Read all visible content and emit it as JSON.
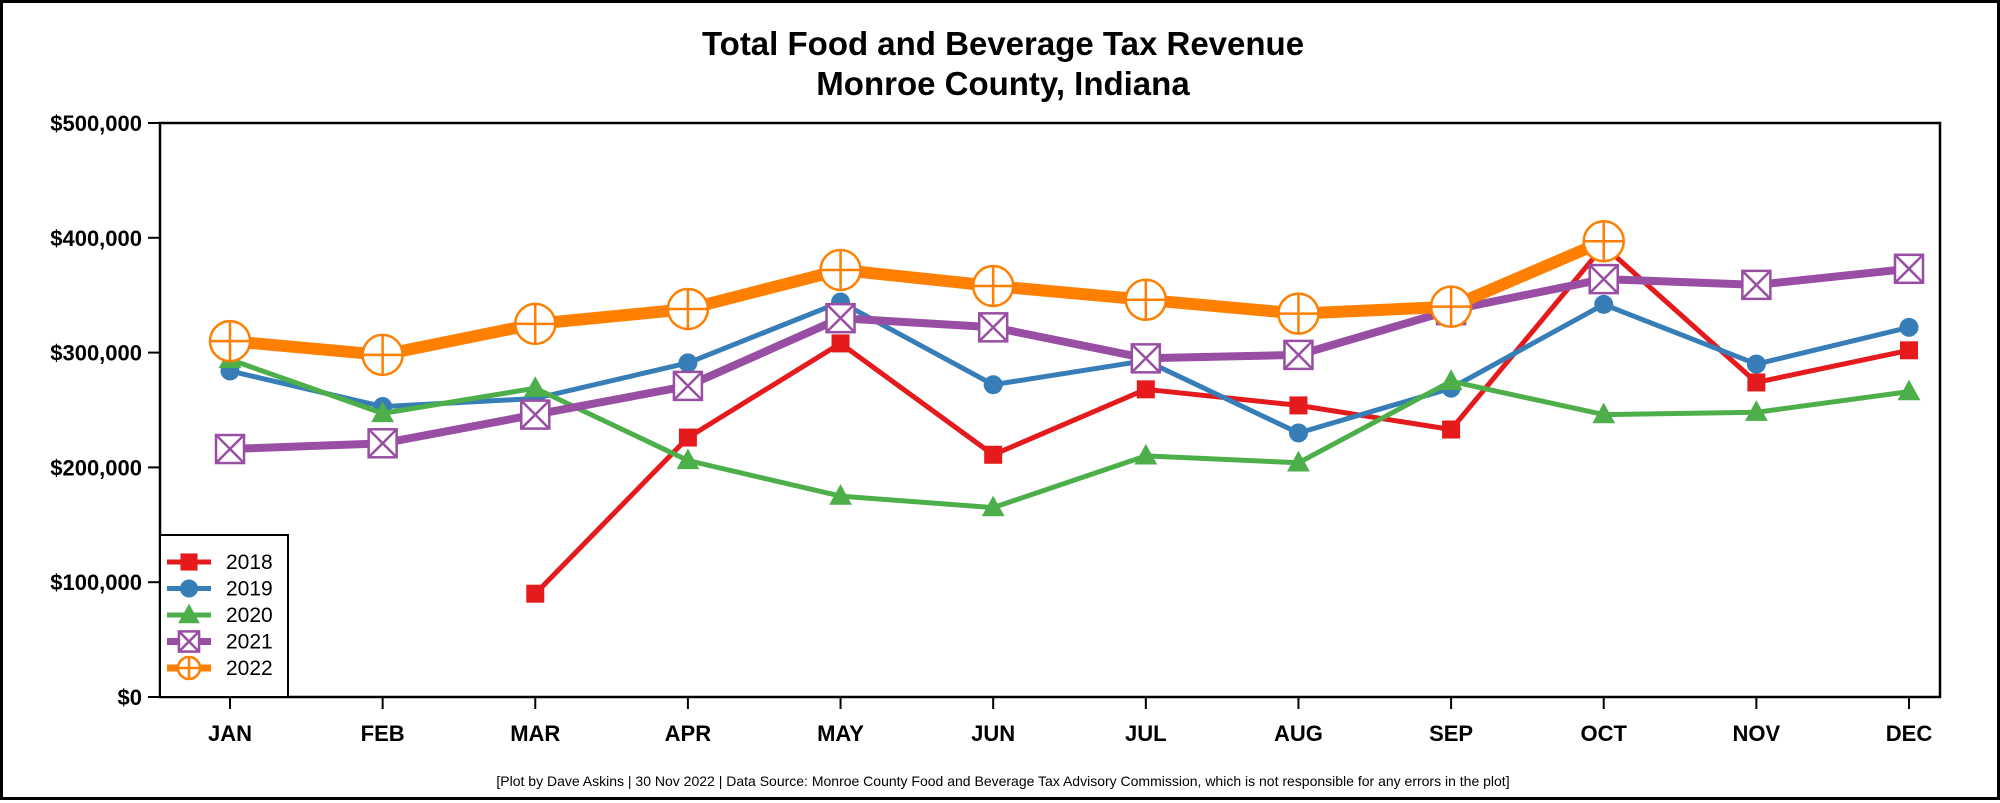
{
  "chart_data": {
    "type": "line",
    "title": "Total Food and Beverage Tax Revenue",
    "subtitle": "Monroe County, Indiana",
    "xlabel": "",
    "ylabel": "",
    "categories": [
      "JAN",
      "FEB",
      "MAR",
      "APR",
      "MAY",
      "JUN",
      "JUL",
      "AUG",
      "SEP",
      "OCT",
      "NOV",
      "DEC"
    ],
    "ylim": [
      0,
      500000
    ],
    "y_ticks": [
      0,
      100000,
      200000,
      300000,
      400000,
      500000
    ],
    "y_tick_labels": [
      "$0",
      "$100,000",
      "$200,000",
      "$300,000",
      "$400,000",
      "$500,000"
    ],
    "grid": false,
    "legend_position": "bottom-left",
    "series": [
      {
        "name": "2018",
        "color": "#e41a1c",
        "marker": "square",
        "line_weight": "medium",
        "values": [
          null,
          null,
          90000,
          226000,
          308000,
          211000,
          268000,
          254000,
          233000,
          393000,
          274000,
          302000
        ]
      },
      {
        "name": "2019",
        "color": "#377eb8",
        "marker": "circle",
        "line_weight": "medium",
        "values": [
          284000,
          253000,
          260000,
          291000,
          344000,
          272000,
          293000,
          230000,
          269000,
          342000,
          290000,
          322000
        ]
      },
      {
        "name": "2020",
        "color": "#4daf4a",
        "marker": "triangle",
        "line_weight": "medium",
        "values": [
          294000,
          247000,
          269000,
          206000,
          175000,
          165000,
          210000,
          204000,
          275000,
          246000,
          248000,
          266000
        ]
      },
      {
        "name": "2021",
        "color": "#984ea3",
        "marker": "boxed-x",
        "line_weight": "heavy",
        "values": [
          216000,
          221000,
          246000,
          271000,
          330000,
          322000,
          295000,
          298000,
          337000,
          364000,
          359000,
          373000
        ]
      },
      {
        "name": "2022",
        "color": "#ff7f00",
        "marker": "circled-plus",
        "line_weight": "extra-heavy",
        "values": [
          310000,
          298000,
          325000,
          338000,
          372000,
          358000,
          346000,
          334000,
          340000,
          397000,
          null,
          null
        ]
      }
    ],
    "caption": "[Plot by Dave Askins | 30 Nov 2022 | Data Source: Monroe County Food and Beverage Tax Advisory Commission, which is not responsible for any errors in the plot]"
  }
}
